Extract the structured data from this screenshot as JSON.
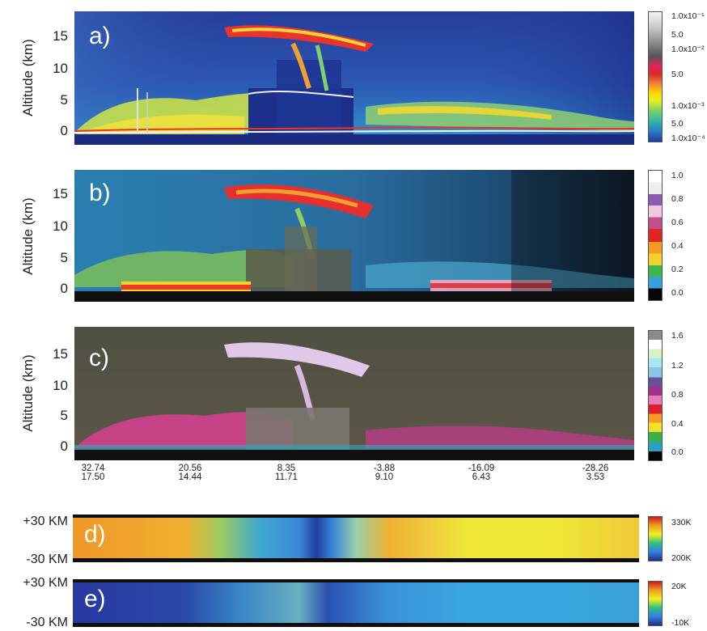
{
  "chart_data": [
    {
      "type": "heatmap",
      "panel_letter": "a)",
      "ylabel": "Altitude (km)",
      "yticks": [
        "15",
        "10",
        "5",
        "0"
      ],
      "ylim": [
        -2,
        20
      ],
      "colorbar": {
        "labels": [
          "1.0x10⁻¹",
          "5.0",
          "1.0x10⁻²",
          "5.0",
          "1.0x10⁻³",
          "5.0",
          "1.0x10⁻⁴"
        ],
        "colors": [
          "#f4f4f4",
          "#c8c8c8",
          "#8a8a8a",
          "#555555",
          "#e8205a",
          "#d82a2a",
          "#f0803a",
          "#ffd400",
          "#e8f020",
          "#7fd06a",
          "#33b8a8",
          "#2a7cc8",
          "#1c3da0"
        ]
      }
    },
    {
      "type": "heatmap",
      "panel_letter": "b)",
      "ylabel": "Altitude (km)",
      "yticks": [
        "15",
        "10",
        "5",
        "0"
      ],
      "ylim": [
        -2,
        20
      ],
      "colorbar": {
        "labels": [
          "1.0",
          "0.8",
          "0.6",
          "0.4",
          "0.2",
          "0.0"
        ],
        "colors": [
          "#ffffff",
          "#eeeeee",
          "#8e5bb4",
          "#f0c8e0",
          "#c0508a",
          "#e02424",
          "#f39c21",
          "#f3d22a",
          "#3cb84a",
          "#3aa0d8",
          "#050505"
        ]
      }
    },
    {
      "type": "heatmap",
      "panel_letter": "c)",
      "ylabel": "Altitude (km)",
      "yticks": [
        "15",
        "10",
        "5",
        "0"
      ],
      "ylim": [
        -2,
        20
      ],
      "colorbar": {
        "labels": [
          "1.6",
          "1.2",
          "0.8",
          "0.4",
          "0.0"
        ],
        "colors": [
          "#8a8a8a",
          "#ffffff",
          "#d8f2c8",
          "#a8e6f0",
          "#8cc4e8",
          "#6a4e9e",
          "#a0308e",
          "#e87ab8",
          "#e01e2a",
          "#f39c21",
          "#f3e02a",
          "#3ab04a",
          "#2aa0c8",
          "#050505"
        ]
      },
      "x_tick_labels": [
        [
          "32.74",
          "17.50"
        ],
        [
          "20.56",
          "14.44"
        ],
        [
          "8.35",
          "11.71"
        ],
        [
          "-3.88",
          "9.10"
        ],
        [
          "-16.09",
          "6.43"
        ],
        [
          "-28.26",
          "3.53"
        ]
      ]
    },
    {
      "type": "heatmap",
      "panel_letter": "d)",
      "ylabels": [
        "+30 KM",
        "-30 KM"
      ],
      "colorbar": {
        "labels": [
          "330K",
          "200K"
        ],
        "colors": [
          "#d01820",
          "#f0a020",
          "#f0f020",
          "#30c080",
          "#3080e0",
          "#20308a"
        ]
      }
    },
    {
      "type": "heatmap",
      "panel_letter": "e)",
      "ylabels": [
        "+30 KM",
        "-30 KM"
      ],
      "colorbar": {
        "labels": [
          "20K",
          "-10K"
        ],
        "colors": [
          "#d01820",
          "#f0a020",
          "#f0f020",
          "#30c080",
          "#3080e0",
          "#20308a"
        ]
      }
    }
  ]
}
